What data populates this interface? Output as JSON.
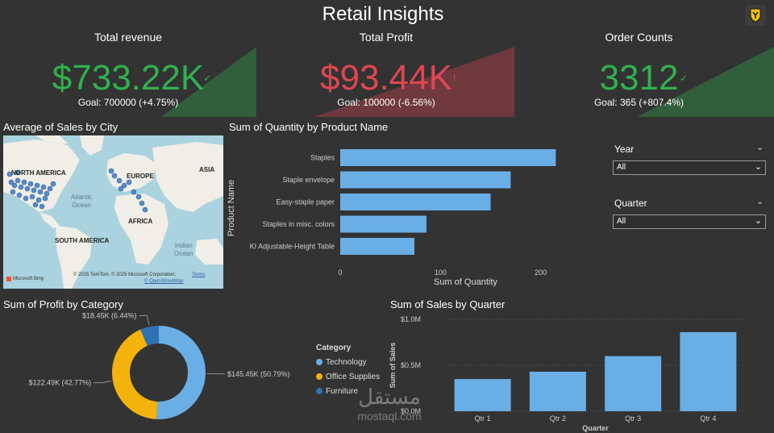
{
  "header": {
    "title": "Retail Insights",
    "logo_icon": "shield-logo-icon"
  },
  "kpis": [
    {
      "title": "Total revenue",
      "value": "$733.22K",
      "goal": "Goal: 700000 (+4.75%)",
      "status": "up",
      "color": "#2fb24d"
    },
    {
      "title": "Total Profit",
      "value": "$93.44K",
      "goal": "Goal: 100000 (-6.56%)",
      "status": "down",
      "color": "#e04651"
    },
    {
      "title": "Order Counts",
      "value": "3312",
      "goal": "Goal: 365 (+807.4%)",
      "status": "up",
      "color": "#2fb24d"
    }
  ],
  "map": {
    "title": "Average of Sales by City",
    "labels": {
      "north_america": "NORTH AMERICA",
      "europe": "EUROPE",
      "asia": "ASIA",
      "atlantic": "Atlantic\nOcean",
      "africa": "AFRICA",
      "south_america": "SOUTH AMERICA",
      "indian": "Indian\nOcean"
    },
    "copyright": "© 2025 TomTom, © 2025 Microsoft Corporation,",
    "terms": "Terms",
    "osm": "© OpenStreetMap",
    "bing": "Microsoft Bing"
  },
  "slicers": {
    "year": {
      "label": "Year",
      "value": "All"
    },
    "quarter": {
      "label": "Quarter",
      "value": "All"
    }
  },
  "chart_data": [
    {
      "id": "quantity",
      "type": "bar",
      "orientation": "horizontal",
      "title": "Sum of Quantity by Product Name",
      "xlabel": "Sum of Quantity",
      "ylabel": "Product Name",
      "categories": [
        "Staples",
        "Staple envelope",
        "Easy-staple paper",
        "Staples in misc. colors",
        "KI Adjustable-Height Table"
      ],
      "values": [
        215,
        170,
        150,
        86,
        74
      ],
      "xlim": [
        0,
        230
      ],
      "ticks": [
        0,
        100,
        200
      ],
      "tick_labels": [
        "0",
        "100",
        "200"
      ],
      "color": "#6aaee6"
    },
    {
      "id": "profit",
      "type": "pie",
      "variant": "donut",
      "title": "Sum of Profit by Category",
      "legend_title": "Category",
      "categories": [
        "Technology",
        "Office Supplies",
        "Furniture"
      ],
      "values": [
        145.45,
        122.49,
        18.45
      ],
      "percent": [
        50.79,
        42.77,
        6.44
      ],
      "data_labels": [
        "$145.45K (50.79%)",
        "$122.49K (42.77%)",
        "$18.45K (6.44%)"
      ],
      "colors": [
        "#6aaee6",
        "#f4b20c",
        "#2f72b3"
      ]
    },
    {
      "id": "sales",
      "type": "bar",
      "orientation": "vertical",
      "title": "Sum of Sales by Quarter",
      "xlabel": "Quarter",
      "ylabel": "Sum of Sales",
      "categories": [
        "Qtr 1",
        "Qtr 2",
        "Qtr 3",
        "Qtr 4"
      ],
      "values": [
        0.35,
        0.43,
        0.6,
        0.86
      ],
      "ylim": [
        0,
        1.0
      ],
      "ticks": [
        0,
        0.5,
        1.0
      ],
      "tick_labels": [
        "$0.0M",
        "$0.5M",
        "$1.0M"
      ],
      "color": "#6aaee6"
    }
  ],
  "watermark": {
    "arabic": "مستقل",
    "latin": "mostaql.com"
  }
}
